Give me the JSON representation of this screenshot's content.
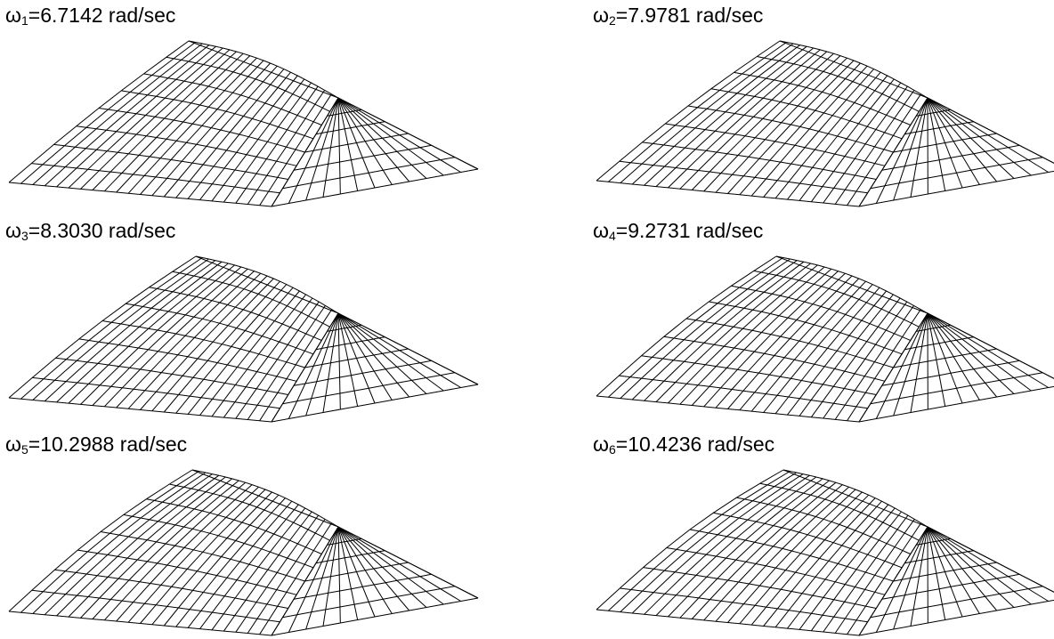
{
  "panels": [
    {
      "symbol": "ω",
      "subscript": "1",
      "text": "=6.7142 rad/sec"
    },
    {
      "symbol": "ω",
      "subscript": "2",
      "text": "=7.9781 rad/sec"
    },
    {
      "symbol": "ω",
      "subscript": "3",
      "text": "=8.3030 rad/sec"
    },
    {
      "symbol": "ω",
      "subscript": "4",
      "text": "=9.2731 rad/sec"
    },
    {
      "symbol": "ω",
      "subscript": "5",
      "text": "=10.2988 rad/sec"
    },
    {
      "symbol": "ω",
      "subscript": "6",
      "text": "=10.4236 rad/sec"
    }
  ]
}
